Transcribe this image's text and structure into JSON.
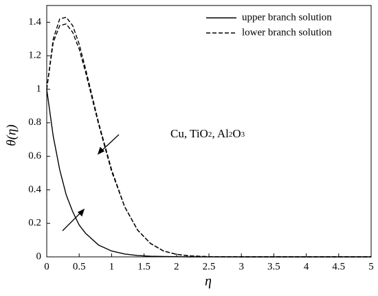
{
  "chart_data": {
    "type": "line",
    "xlabel": "η",
    "ylabel": "θ(η)",
    "annotation": [
      "Cu, TiO",
      "2",
      ", Al",
      "2",
      "O",
      "3"
    ],
    "x": [
      0,
      0.1,
      0.2,
      0.3,
      0.4,
      0.5,
      0.6,
      0.8,
      1.0,
      1.2,
      1.4,
      1.6,
      1.8,
      2.0,
      2.2,
      2.5,
      3.0,
      5.0
    ],
    "series": [
      {
        "name": "upper branch solution",
        "color": "#000000",
        "dash": false,
        "values": [
          1.0,
          0.72,
          0.52,
          0.37,
          0.27,
          0.19,
          0.14,
          0.07,
          0.035,
          0.017,
          0.008,
          0.004,
          0.002,
          0.001,
          0,
          0,
          0,
          0
        ]
      },
      {
        "name": "lower branch solution",
        "color": "#000000",
        "dash": true,
        "values": [
          1.0,
          1.3,
          1.42,
          1.43,
          1.38,
          1.27,
          1.12,
          0.8,
          0.52,
          0.3,
          0.16,
          0.08,
          0.035,
          0.015,
          0.006,
          0.001,
          0,
          0
        ]
      },
      {
        "color": "#000000",
        "dash": true,
        "values": [
          1.0,
          1.28,
          1.38,
          1.39,
          1.34,
          1.24,
          1.1,
          0.79,
          0.51,
          0.3,
          0.16,
          0.08,
          0.035,
          0.015,
          0.006,
          0.001,
          0,
          0
        ]
      }
    ],
    "xlim": [
      0,
      5
    ],
    "xticks": [
      0,
      0.5,
      1,
      1.5,
      2,
      2.5,
      3,
      3.5,
      4,
      4.5,
      5
    ],
    "ylim": [
      0,
      1.5
    ],
    "yticks": [
      0,
      0.2,
      0.4,
      0.6,
      0.8,
      1,
      1.2,
      1.4
    ],
    "grid": false,
    "legend": "top-right"
  }
}
